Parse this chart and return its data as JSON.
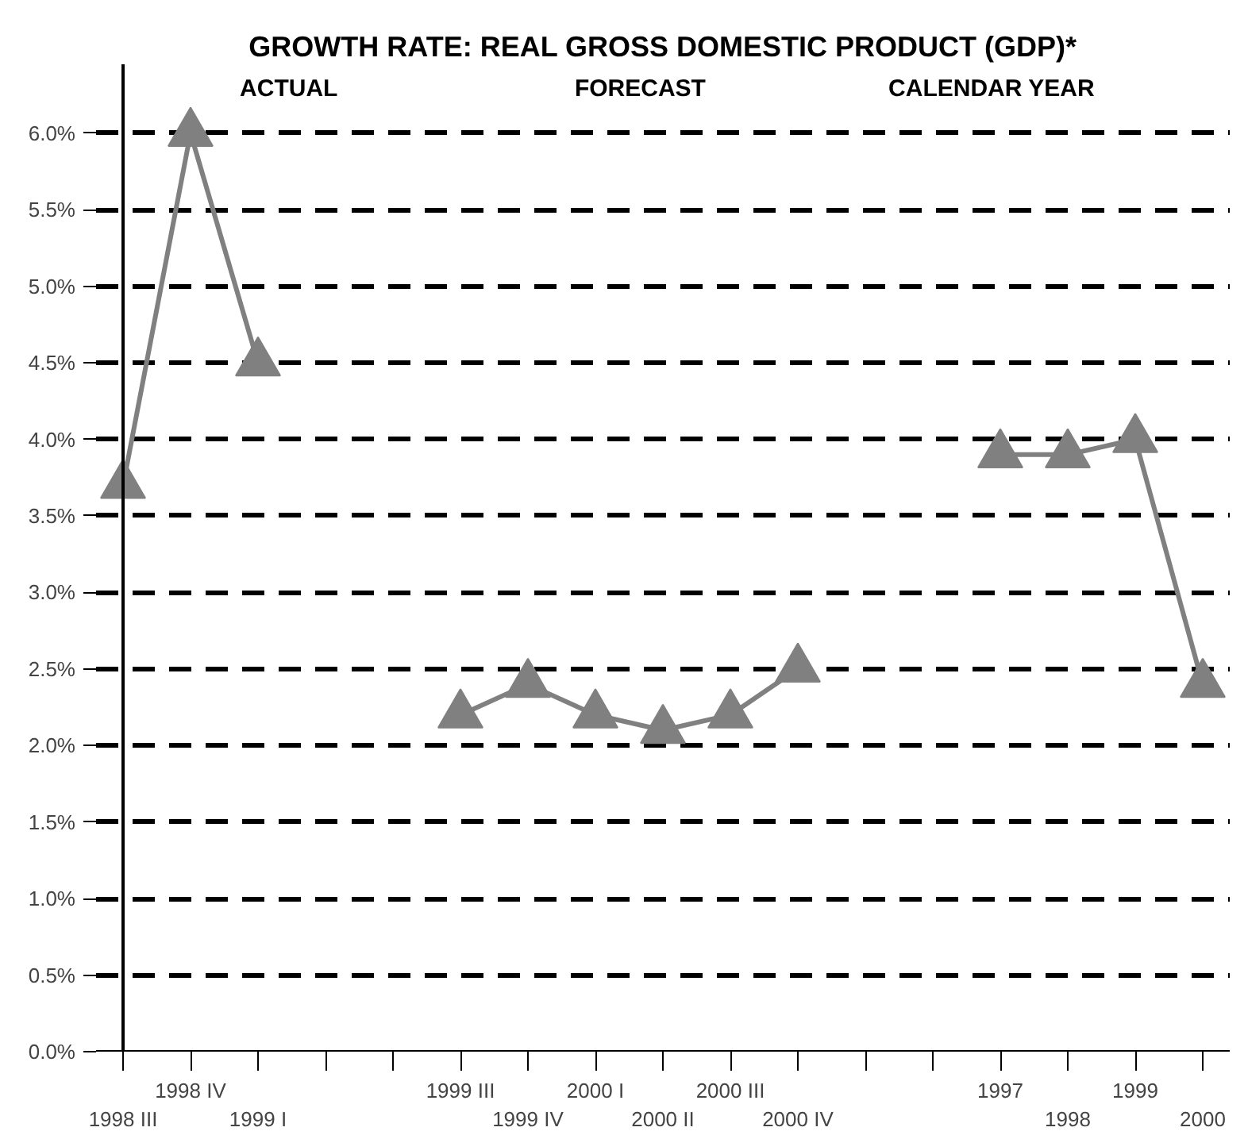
{
  "chart_data": {
    "type": "line",
    "title": "GROWTH RATE: REAL GROSS DOMESTIC PRODUCT (GDP)*",
    "annotations": [
      "ACTUAL",
      "FORECAST",
      "CALENDAR YEAR"
    ],
    "categories": [
      "1998 III",
      "1998 IV",
      "1999 I",
      null,
      null,
      "1999 III",
      "1999 IV",
      "2000 I",
      "2000 II",
      "2000 III",
      "2000 IV",
      null,
      null,
      "1997",
      "1998",
      "1999",
      "2000"
    ],
    "series": [
      {
        "color": "#808080",
        "values": [
          3.7,
          6.0,
          4.5,
          null,
          null,
          2.2,
          2.4,
          2.2,
          2.1,
          2.2,
          2.5,
          null,
          null,
          3.9,
          3.9,
          4.0,
          2.4
        ]
      }
    ],
    "ylim": [
      0,
      6.45
    ],
    "yticks": [
      {
        "value": 0,
        "label": "0.0%"
      },
      {
        "value": 0.5,
        "label": "0.5%"
      },
      {
        "value": 1,
        "label": "1.0%"
      },
      {
        "value": 1.5,
        "label": "1.5%"
      },
      {
        "value": 2,
        "label": "2.0%"
      },
      {
        "value": 2.5,
        "label": "2.5%"
      },
      {
        "value": 3,
        "label": "3.0%"
      },
      {
        "value": 3.5,
        "label": "3.5%"
      },
      {
        "value": 4,
        "label": "4.0%"
      },
      {
        "value": 4.5,
        "label": "4.5%"
      },
      {
        "value": 5,
        "label": "5.0%"
      },
      {
        "value": 5.5,
        "label": "5.5%"
      },
      {
        "value": 6,
        "label": "6.0%"
      }
    ],
    "grid": "y",
    "marker": "triangle",
    "line_style": "solid"
  }
}
